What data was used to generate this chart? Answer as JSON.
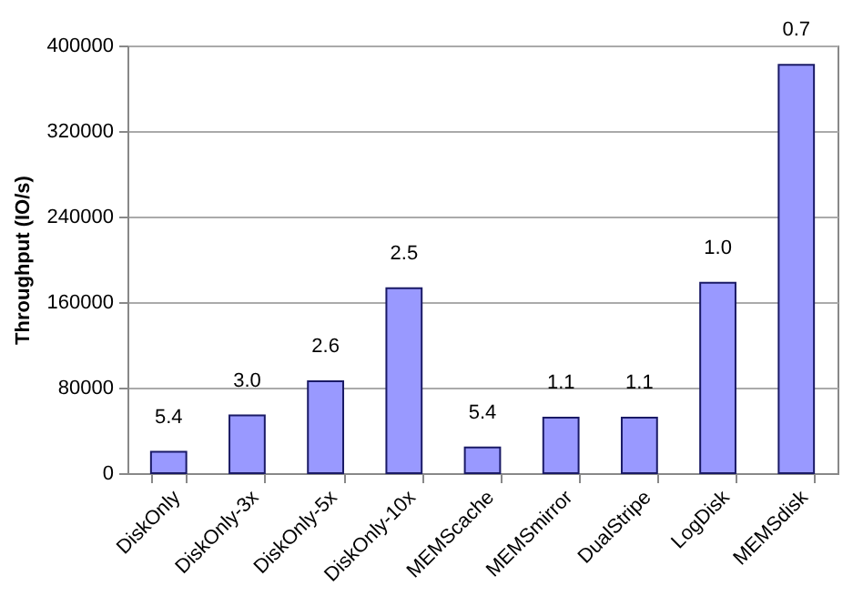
{
  "chart_data": {
    "type": "bar",
    "ylabel": "Throughput (IO/s)",
    "categories": [
      "DiskOnly",
      "DiskOnly-3x",
      "DiskOnly-5x",
      "DiskOnly-10x",
      "MEMScache",
      "MEMSmirror",
      "DualStripe",
      "LogDisk",
      "MEMSdisk"
    ],
    "values": [
      20000,
      54000,
      86000,
      173000,
      24000,
      52000,
      52000,
      178000,
      382000
    ],
    "annotations": [
      {
        "text": "5.4",
        "x": "DiskOnly",
        "y": 20000
      },
      {
        "text": "3.0",
        "x": "DiskOnly-3x",
        "y": 54000
      },
      {
        "text": "2.6",
        "x": "DiskOnly-5x",
        "y": 86000
      },
      {
        "text": "2.5",
        "x": "DiskOnly-10x",
        "y": 173000
      },
      {
        "text": "5.4",
        "x": "MEMScache",
        "y": 24000
      },
      {
        "text": "1.1",
        "x": "MEMSmirror",
        "y": 52000
      },
      {
        "text": "1.1",
        "x": "DualStripe",
        "y": 52000
      },
      {
        "text": "1.0",
        "x": "LogDisk",
        "y": 178000
      },
      {
        "text": "0.7",
        "x": "MEMSdisk",
        "y": 382000
      }
    ],
    "color": "#9999ff",
    "ylim": [
      0,
      400000
    ],
    "yticks": [
      0,
      80000,
      160000,
      240000,
      320000,
      400000
    ],
    "grid": "y"
  }
}
